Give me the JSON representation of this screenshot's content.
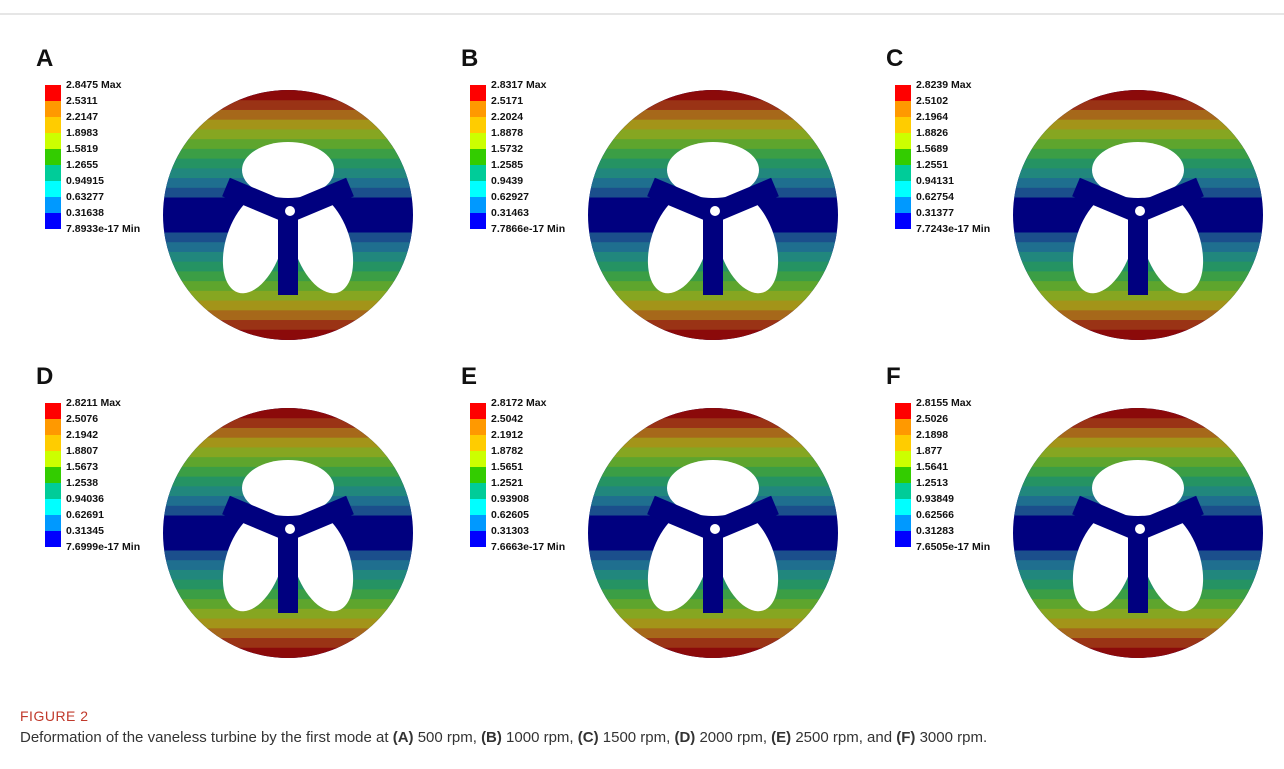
{
  "panels": [
    {
      "label": "A",
      "legend": [
        "2.8475 Max",
        "2.5311",
        "2.2147",
        "1.8983",
        "1.5819",
        "1.2655",
        "0.94915",
        "0.63277",
        "0.31638",
        "7.8933e-17 Min"
      ]
    },
    {
      "label": "B",
      "legend": [
        "2.8317 Max",
        "2.5171",
        "2.2024",
        "1.8878",
        "1.5732",
        "1.2585",
        "0.9439",
        "0.62927",
        "0.31463",
        "7.7866e-17 Min"
      ]
    },
    {
      "label": "C",
      "legend": [
        "2.8239 Max",
        "2.5102",
        "2.1964",
        "1.8826",
        "1.5689",
        "1.2551",
        "0.94131",
        "0.62754",
        "0.31377",
        "7.7243e-17 Min"
      ]
    },
    {
      "label": "D",
      "legend": [
        "2.8211 Max",
        "2.5076",
        "2.1942",
        "1.8807",
        "1.5673",
        "1.2538",
        "0.94036",
        "0.62691",
        "0.31345",
        "7.6999e-17 Min"
      ]
    },
    {
      "label": "E",
      "legend": [
        "2.8172 Max",
        "2.5042",
        "2.1912",
        "1.8782",
        "1.5651",
        "1.2521",
        "0.93908",
        "0.62605",
        "0.31303",
        "7.6663e-17 Min"
      ]
    },
    {
      "label": "F",
      "legend": [
        "2.8155 Max",
        "2.5026",
        "2.1898",
        "1.877",
        "1.5641",
        "1.2513",
        "0.93849",
        "0.62566",
        "0.31283",
        "7.6505e-17 Min"
      ]
    }
  ],
  "caption": {
    "figure": "FIGURE 2",
    "parts": [
      "Deformation of the vaneless turbine by the first mode at ",
      "(A)",
      " 500 rpm, ",
      "(B)",
      " 1000 rpm, ",
      "(C)",
      " 1500 rpm, ",
      "(D)",
      " 2000 rpm, ",
      "(E)",
      " 2500 rpm, and ",
      "(F)",
      " 3000 rpm."
    ]
  }
}
